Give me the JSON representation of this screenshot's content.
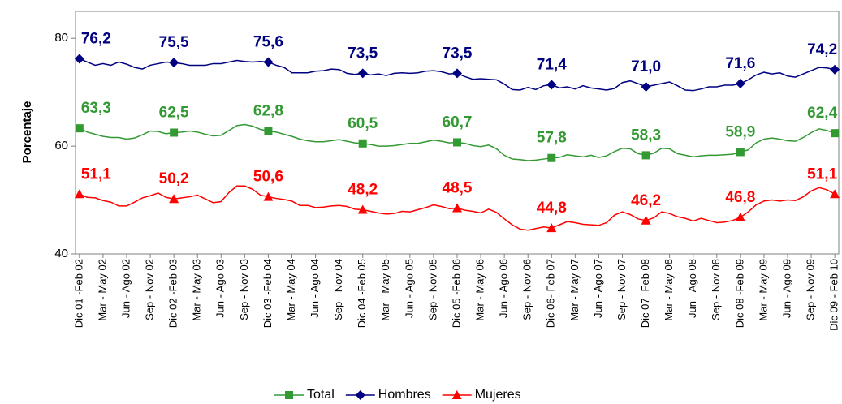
{
  "chart_data": {
    "type": "line",
    "y_label": "Porcentaje",
    "categories": [
      "Dic 01 -Feb 02",
      null,
      null,
      "Mar - May 02",
      null,
      null,
      "Jun - Ago 02",
      null,
      null,
      "Sep - Nov 02",
      null,
      null,
      "Dic 02 -Feb 03",
      null,
      null,
      "Mar - May 03",
      null,
      null,
      "Jun - Ago 03",
      null,
      null,
      "Sep - Nov 03",
      null,
      null,
      "Dic 03 -Feb 04",
      null,
      null,
      "Mar - May 04",
      null,
      null,
      "Jun - Ago 04",
      null,
      null,
      "Sep - Nov 04",
      null,
      null,
      "Dic 04 -Feb 05",
      null,
      null,
      "Mar - May 05",
      null,
      null,
      "Jun - Ago 05",
      null,
      null,
      "Sep - Nov 05",
      null,
      null,
      "Dic 05 -Feb 06",
      null,
      null,
      "Mar - May 06",
      null,
      null,
      "Jun - Ago 06",
      null,
      null,
      "Sep - Nov 06",
      null,
      null,
      "Dic  06- Feb 07",
      null,
      null,
      "Mar - May 07",
      null,
      null,
      "Jun - Ago 07",
      null,
      null,
      "Sep - Nov 07",
      null,
      null,
      "Dic 07 -Feb 08",
      null,
      null,
      "Mar - May 08",
      null,
      null,
      "Jun - Ago 08",
      null,
      null,
      "Sep - Nov 08",
      null,
      null,
      "Dic 08 -Feb 09",
      null,
      null,
      "Mar - May 09",
      null,
      null,
      "Jun - Ago 09",
      null,
      null,
      "Sep - Nov 09",
      null,
      null,
      "Dic 09 - Feb 10"
    ],
    "ylim": [
      40,
      85
    ],
    "yticks": [
      40,
      60,
      80
    ],
    "legend": "bottom",
    "series": [
      {
        "name": "Total",
        "color": "#339933",
        "marker": "square",
        "values": [
          63.3,
          62.6,
          62.2,
          61.8,
          61.6,
          61.6,
          61.3,
          61.5,
          62.1,
          62.8,
          62.7,
          62.3,
          62.5,
          62.6,
          62.8,
          62.6,
          62.2,
          61.9,
          62.0,
          62.9,
          63.8,
          64.0,
          63.7,
          63.1,
          62.8,
          62.6,
          62.2,
          61.8,
          61.3,
          61.0,
          60.8,
          60.8,
          61.0,
          61.2,
          60.9,
          60.6,
          60.5,
          60.3,
          60.0,
          60.0,
          60.1,
          60.3,
          60.5,
          60.5,
          60.8,
          61.1,
          60.9,
          60.6,
          60.7,
          60.5,
          60.1,
          59.9,
          60.2,
          59.5,
          58.3,
          57.6,
          57.5,
          57.3,
          57.4,
          57.6,
          57.8,
          57.9,
          58.4,
          58.2,
          58.0,
          58.3,
          57.9,
          58.2,
          59.0,
          59.6,
          59.5,
          58.6,
          58.3,
          58.7,
          59.6,
          59.5,
          58.6,
          58.3,
          58.0,
          58.2,
          58.3,
          58.3,
          58.4,
          58.5,
          58.9,
          59.3,
          60.6,
          61.3,
          61.5,
          61.3,
          61.0,
          60.9,
          61.6,
          62.5,
          63.2,
          62.9,
          62.4
        ],
        "value_labels": [
          "63,3",
          null,
          null,
          null,
          null,
          null,
          null,
          null,
          null,
          null,
          null,
          null,
          "62,5",
          null,
          null,
          null,
          null,
          null,
          null,
          null,
          null,
          null,
          null,
          null,
          "62,8",
          null,
          null,
          null,
          null,
          null,
          null,
          null,
          null,
          null,
          null,
          null,
          "60,5",
          null,
          null,
          null,
          null,
          null,
          null,
          null,
          null,
          null,
          null,
          null,
          "60,7",
          null,
          null,
          null,
          null,
          null,
          null,
          null,
          null,
          null,
          null,
          null,
          "57,8",
          null,
          null,
          null,
          null,
          null,
          null,
          null,
          null,
          null,
          null,
          null,
          "58,3",
          null,
          null,
          null,
          null,
          null,
          null,
          null,
          null,
          null,
          null,
          null,
          "58,9",
          null,
          null,
          null,
          null,
          null,
          null,
          null,
          null,
          null,
          null,
          null,
          "62,4"
        ]
      },
      {
        "name": "Hombres",
        "color": "#000080",
        "marker": "diamond",
        "values": [
          76.2,
          75.6,
          75.0,
          75.3,
          75.0,
          75.6,
          75.2,
          74.6,
          74.3,
          75.0,
          75.3,
          75.6,
          75.5,
          75.3,
          75.0,
          75.0,
          75.0,
          75.3,
          75.3,
          75.6,
          75.9,
          75.7,
          75.6,
          75.7,
          75.6,
          75.0,
          74.6,
          73.6,
          73.6,
          73.6,
          73.9,
          74.0,
          74.3,
          74.2,
          73.5,
          73.3,
          73.5,
          73.2,
          73.4,
          73.1,
          73.5,
          73.6,
          73.5,
          73.6,
          73.9,
          74.0,
          73.8,
          73.4,
          73.5,
          72.9,
          72.4,
          72.5,
          72.4,
          72.3,
          71.5,
          70.5,
          70.4,
          70.9,
          70.5,
          71.2,
          71.4,
          70.8,
          71.0,
          70.6,
          71.2,
          70.8,
          70.6,
          70.4,
          70.7,
          71.8,
          72.1,
          71.6,
          71.0,
          71.3,
          71.6,
          71.9,
          71.2,
          70.4,
          70.3,
          70.6,
          71.0,
          71.0,
          71.3,
          71.3,
          71.6,
          72.3,
          73.2,
          73.7,
          73.4,
          73.6,
          73.0,
          72.8,
          73.4,
          74.0,
          74.6,
          74.5,
          74.2
        ],
        "value_labels": [
          "76,2",
          null,
          null,
          null,
          null,
          null,
          null,
          null,
          null,
          null,
          null,
          null,
          "75,5",
          null,
          null,
          null,
          null,
          null,
          null,
          null,
          null,
          null,
          null,
          null,
          "75,6",
          null,
          null,
          null,
          null,
          null,
          null,
          null,
          null,
          null,
          null,
          null,
          "73,5",
          null,
          null,
          null,
          null,
          null,
          null,
          null,
          null,
          null,
          null,
          null,
          "73,5",
          null,
          null,
          null,
          null,
          null,
          null,
          null,
          null,
          null,
          null,
          null,
          "71,4",
          null,
          null,
          null,
          null,
          null,
          null,
          null,
          null,
          null,
          null,
          null,
          "71,0",
          null,
          null,
          null,
          null,
          null,
          null,
          null,
          null,
          null,
          null,
          null,
          "71,6",
          null,
          null,
          null,
          null,
          null,
          null,
          null,
          null,
          null,
          null,
          null,
          "74,2"
        ]
      },
      {
        "name": "Mujeres",
        "color": "#ff0000",
        "marker": "triangle",
        "values": [
          51.1,
          50.5,
          50.4,
          49.9,
          49.6,
          48.9,
          48.9,
          49.6,
          50.4,
          50.8,
          51.3,
          50.5,
          50.2,
          50.4,
          50.6,
          50.9,
          50.2,
          49.5,
          49.7,
          51.4,
          52.6,
          52.6,
          52.0,
          50.9,
          50.6,
          50.3,
          50.1,
          49.8,
          49.0,
          49.0,
          48.6,
          48.7,
          48.9,
          49.0,
          48.8,
          48.3,
          48.2,
          47.9,
          47.6,
          47.4,
          47.5,
          47.9,
          47.8,
          48.2,
          48.6,
          49.1,
          48.8,
          48.4,
          48.5,
          48.1,
          47.9,
          47.6,
          48.3,
          47.7,
          46.5,
          45.4,
          44.6,
          44.4,
          44.7,
          45.0,
          44.8,
          45.4,
          46.0,
          45.8,
          45.5,
          45.4,
          45.3,
          45.8,
          47.2,
          47.8,
          47.3,
          46.5,
          46.2,
          46.7,
          47.8,
          47.5,
          46.9,
          46.6,
          46.1,
          46.6,
          46.2,
          45.8,
          45.9,
          46.2,
          46.8,
          47.8,
          49.1,
          49.8,
          50.0,
          49.8,
          50.0,
          49.9,
          50.6,
          51.7,
          52.3,
          51.9,
          51.1
        ],
        "value_labels": [
          "51,1",
          null,
          null,
          null,
          null,
          null,
          null,
          null,
          null,
          null,
          null,
          null,
          "50,2",
          null,
          null,
          null,
          null,
          null,
          null,
          null,
          null,
          null,
          null,
          null,
          "50,6",
          null,
          null,
          null,
          null,
          null,
          null,
          null,
          null,
          null,
          null,
          null,
          "48,2",
          null,
          null,
          null,
          null,
          null,
          null,
          null,
          null,
          null,
          null,
          null,
          "48,5",
          null,
          null,
          null,
          null,
          null,
          null,
          null,
          null,
          null,
          null,
          null,
          "44,8",
          null,
          null,
          null,
          null,
          null,
          null,
          null,
          null,
          null,
          null,
          null,
          "46,2",
          null,
          null,
          null,
          null,
          null,
          null,
          null,
          null,
          null,
          null,
          null,
          "46,8",
          null,
          null,
          null,
          null,
          null,
          null,
          null,
          null,
          null,
          null,
          null,
          "51,1"
        ]
      }
    ]
  }
}
